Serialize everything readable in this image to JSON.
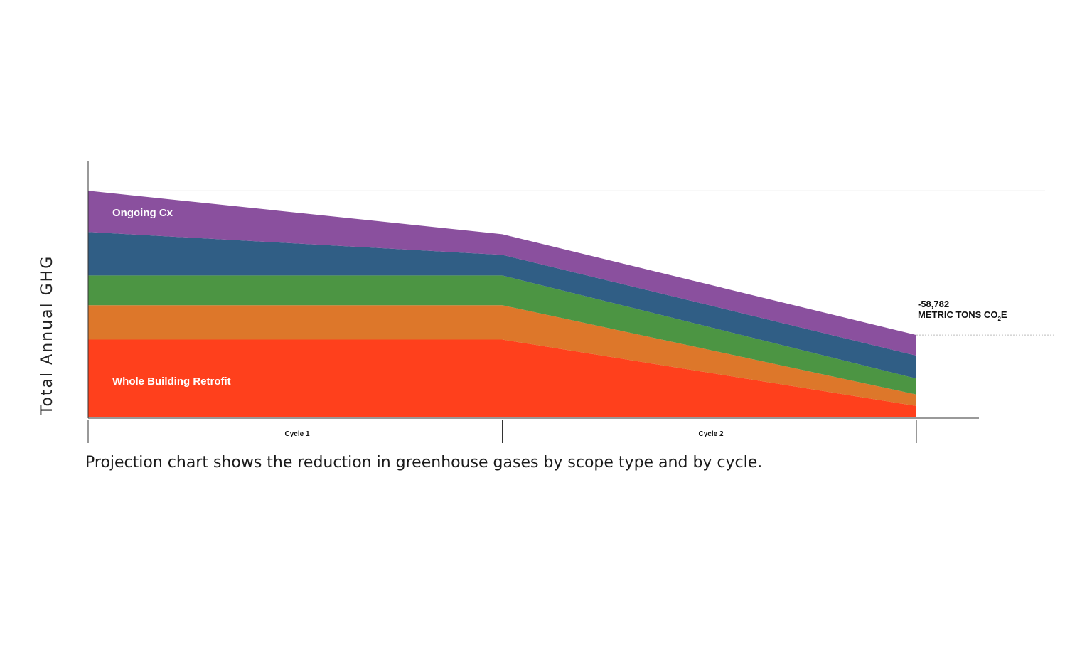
{
  "chart_data": {
    "type": "area",
    "stacked": true,
    "title": "",
    "ylabel": "Total Annual GHG",
    "xlabel": "",
    "categories": [
      "Cycle 1",
      "Cycle 2"
    ],
    "x": [
      0,
      1,
      2
    ],
    "ylim": [
      0,
      100
    ],
    "grid": false,
    "legend": "none",
    "series": [
      {
        "name": "Whole Building Retrofit",
        "color": "#FF401C",
        "values": [
          34,
          34,
          5
        ]
      },
      {
        "name": "",
        "color": "#DD772A",
        "values": [
          15,
          15,
          5
        ]
      },
      {
        "name": "",
        "color": "#4C9543",
        "values": [
          13,
          13,
          7
        ]
      },
      {
        "name": "",
        "color": "#305E85",
        "values": [
          19,
          9,
          10
        ]
      },
      {
        "name": "Ongoing Cx",
        "color": "#8A509E",
        "values": [
          18,
          9,
          9
        ]
      }
    ],
    "annotation": {
      "value": "-58,782",
      "unit_prefix": "METRIC TONS CO",
      "unit_subscript": "2",
      "unit_suffix": "E"
    }
  },
  "caption": "Projection chart shows the reduction in greenhouse gases by scope type and by cycle."
}
